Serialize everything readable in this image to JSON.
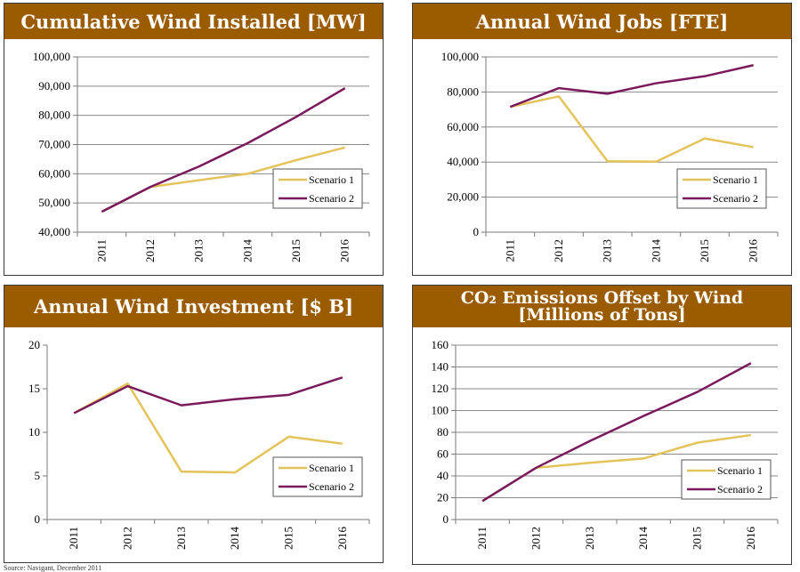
{
  "colors": {
    "header_bg": "#9b5c00",
    "scenario1": "#e3c35a",
    "scenario2": "#7a1a5c",
    "grid": "#8a8a8a"
  },
  "chart_data": [
    {
      "type": "line",
      "title": "Cumulative Wind Installed [MW]",
      "categories": [
        "2011",
        "2012",
        "2013",
        "2014",
        "2015",
        "2016"
      ],
      "ylim": [
        40000,
        100000
      ],
      "yticks": [
        40000,
        50000,
        60000,
        70000,
        80000,
        90000,
        100000
      ],
      "ytick_labels": [
        "40,000",
        "50,000",
        "60,000",
        "70,000",
        "80,000",
        "90,000",
        "100,000"
      ],
      "grid": true,
      "legend_position": "bottom-right",
      "series": [
        {
          "name": "Scenario 1",
          "values": [
            47000,
            55500,
            57800,
            60000,
            64700,
            69000
          ]
        },
        {
          "name": "Scenario 2",
          "values": [
            47000,
            55500,
            62500,
            70500,
            79500,
            89300
          ]
        }
      ]
    },
    {
      "type": "line",
      "title": "Annual Wind Jobs [FTE]",
      "categories": [
        "2011",
        "2012",
        "2013",
        "2014",
        "2015",
        "2016"
      ],
      "ylim": [
        0,
        100000
      ],
      "yticks": [
        0,
        20000,
        40000,
        60000,
        80000,
        100000
      ],
      "ytick_labels": [
        "0",
        "20,000",
        "40,000",
        "60,000",
        "80,000",
        "100,000"
      ],
      "grid": true,
      "legend_position": "bottom-right",
      "series": [
        {
          "name": "Scenario 1",
          "values": [
            71500,
            77500,
            40500,
            40200,
            53500,
            48500
          ]
        },
        {
          "name": "Scenario 2",
          "values": [
            71500,
            82200,
            79000,
            85000,
            89000,
            95300
          ]
        }
      ]
    },
    {
      "type": "line",
      "title": "Annual Wind Investment [$ B]",
      "categories": [
        "2011",
        "2012",
        "2013",
        "2014",
        "2015",
        "2016"
      ],
      "ylim": [
        0,
        20
      ],
      "yticks": [
        0,
        5,
        10,
        15,
        20
      ],
      "ytick_labels": [
        "0",
        "5",
        "10",
        "15",
        "20"
      ],
      "grid": false,
      "legend_position": "bottom-right",
      "series": [
        {
          "name": "Scenario 1",
          "values": [
            12.2,
            15.6,
            5.5,
            5.4,
            9.5,
            8.7
          ]
        },
        {
          "name": "Scenario 2",
          "values": [
            12.2,
            15.3,
            13.1,
            13.8,
            14.3,
            16.3
          ]
        }
      ]
    },
    {
      "type": "line",
      "title": "CO2 Emissions Offset by Wind [Millions of Tons]",
      "title_lines": [
        "CO₂ Emissions Offset by Wind",
        "[Millions of Tons]"
      ],
      "categories": [
        "2011",
        "2012",
        "2013",
        "2014",
        "2015",
        "2016"
      ],
      "ylim": [
        0,
        160
      ],
      "yticks": [
        0,
        20,
        40,
        60,
        80,
        100,
        120,
        140,
        160
      ],
      "ytick_labels": [
        "0",
        "20",
        "40",
        "60",
        "80",
        "100",
        "120",
        "140",
        "160"
      ],
      "grid": true,
      "legend_position": "bottom-right",
      "series": [
        {
          "name": "Scenario 1",
          "values": [
            17,
            47.5,
            52,
            56,
            70.5,
            77.5
          ]
        },
        {
          "name": "Scenario 2",
          "values": [
            17,
            47.5,
            72,
            95,
            117,
            143.5
          ]
        }
      ]
    }
  ],
  "source_text": "Source: Navigant, December 2011"
}
